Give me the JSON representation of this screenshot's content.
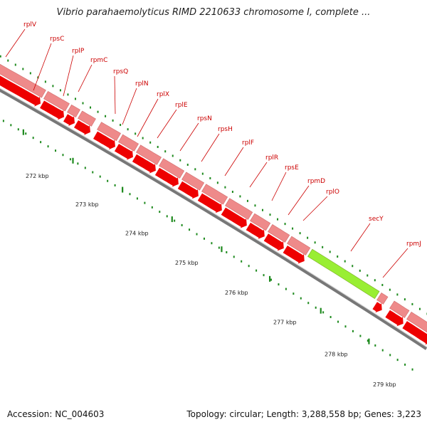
{
  "title": "Vibrio parahaemolyticus RIMD 2210633 chromosome I, complete ...",
  "footer": {
    "accession": "Accession: NC_004603",
    "summary": "Topology: circular; Length: 3,288,558 bp; Genes: 3,223"
  },
  "colors": {
    "gene_band": "#ee8a8a",
    "gene_arrow": "#ee0000",
    "selected_gene": "#99ee33",
    "label": "#cc0000",
    "tick": "#1e8a1e",
    "backbone": "#999999"
  },
  "genes": [
    {
      "name": "rplV"
    },
    {
      "name": "rpsC"
    },
    {
      "name": "rplP"
    },
    {
      "name": "rpmC"
    },
    {
      "name": "rpsQ"
    },
    {
      "name": "rplN"
    },
    {
      "name": "rplX"
    },
    {
      "name": "rplE"
    },
    {
      "name": "rpsN"
    },
    {
      "name": "rpsH"
    },
    {
      "name": "rplF"
    },
    {
      "name": "rplR"
    },
    {
      "name": "rpsE"
    },
    {
      "name": "rpmD"
    },
    {
      "name": "rplO"
    },
    {
      "name": "secY",
      "selected": true
    },
    {
      "name": "rpmJ"
    }
  ],
  "scale_ticks": [
    "272 kbp",
    "273 kbp",
    "274 kbp",
    "275 kbp",
    "276 kbp",
    "277 kbp",
    "278 kbp",
    "279 kbp"
  ]
}
